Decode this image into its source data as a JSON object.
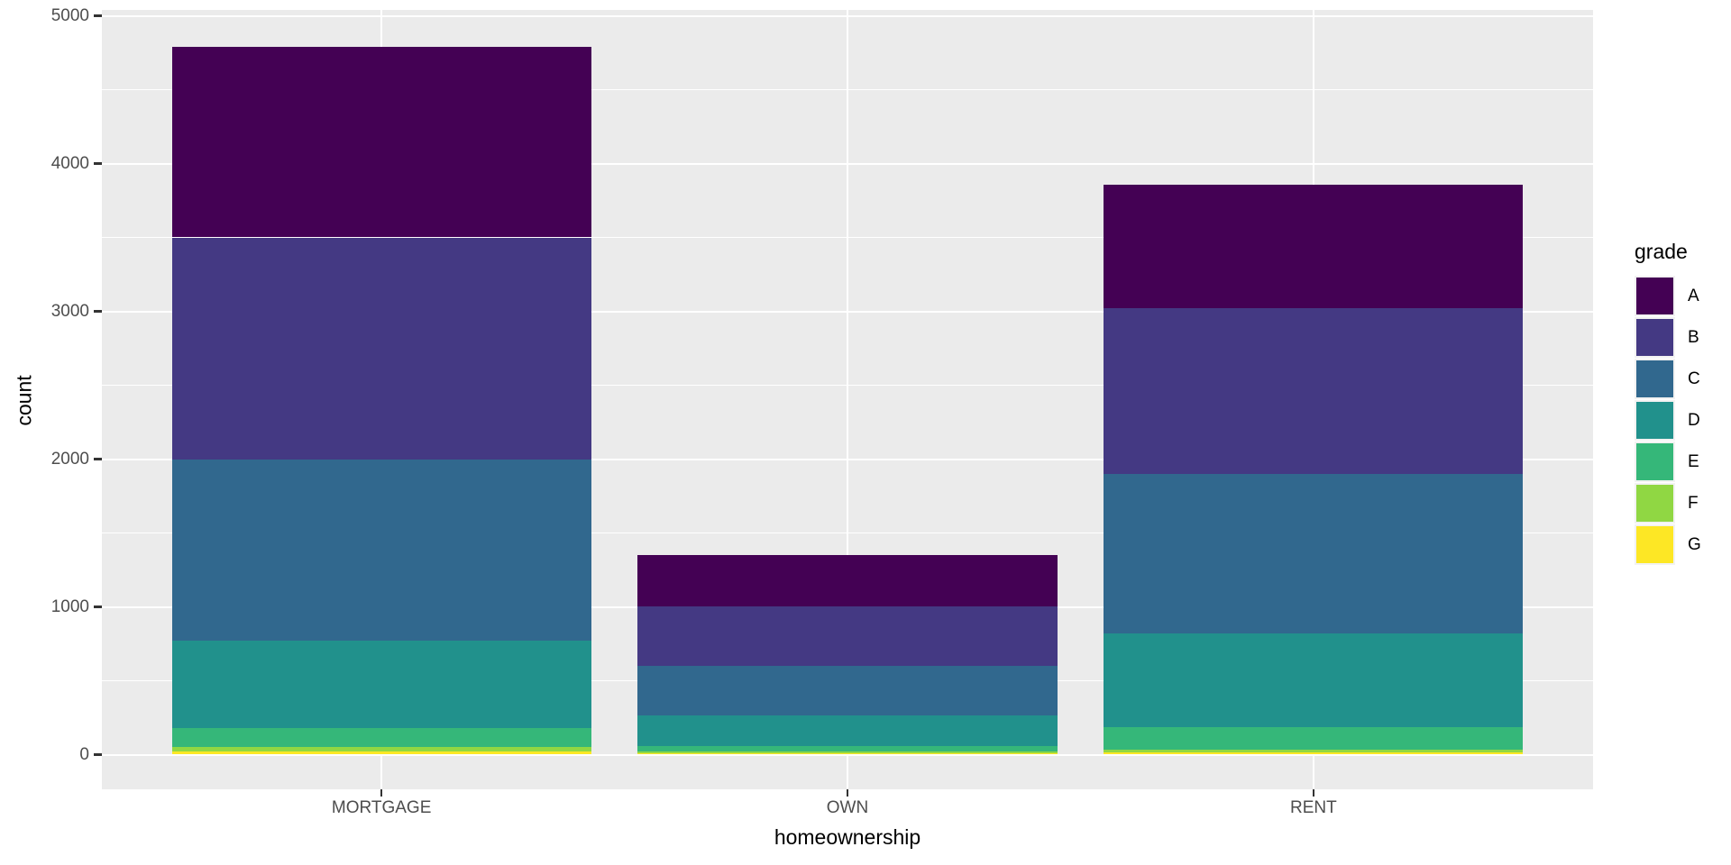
{
  "chart_data": {
    "type": "bar",
    "stacked": true,
    "title": "",
    "xlabel": "homeownership",
    "ylabel": "count",
    "categories": [
      "MORTGAGE",
      "OWN",
      "RENT"
    ],
    "series": [
      {
        "name": "A",
        "color": "#440154",
        "values": [
          1290,
          350,
          835
        ]
      },
      {
        "name": "B",
        "color": "#443983",
        "values": [
          1500,
          400,
          1125
        ]
      },
      {
        "name": "C",
        "color": "#31688E",
        "values": [
          1230,
          340,
          1075
        ]
      },
      {
        "name": "D",
        "color": "#21918C",
        "values": [
          590,
          205,
          640
        ]
      },
      {
        "name": "E",
        "color": "#35B779",
        "values": [
          130,
          35,
          150
        ]
      },
      {
        "name": "F",
        "color": "#90D743",
        "values": [
          30,
          15,
          20
        ]
      },
      {
        "name": "G",
        "color": "#FDE725",
        "values": [
          20,
          8,
          13
        ]
      }
    ],
    "stack_totals": [
      4790,
      1353,
      3858
    ],
    "ylim": [
      0,
      5000
    ],
    "y_ticks": [
      0,
      1000,
      2000,
      3000,
      4000,
      5000
    ],
    "y_minor_ticks": [
      500,
      1500,
      2500,
      3500,
      4500
    ],
    "legend": {
      "title": "grade",
      "position": "right",
      "entries": [
        "A",
        "B",
        "C",
        "D",
        "E",
        "F",
        "G"
      ]
    },
    "grid": "white major+minor on grey panel",
    "bar_rel_width": 0.9,
    "theme": {
      "panel_bg": "#EBEBEB",
      "grid_color": "#FFFFFF",
      "tick_text_color": "#4D4D4D",
      "title_text_color": "#000000"
    }
  }
}
